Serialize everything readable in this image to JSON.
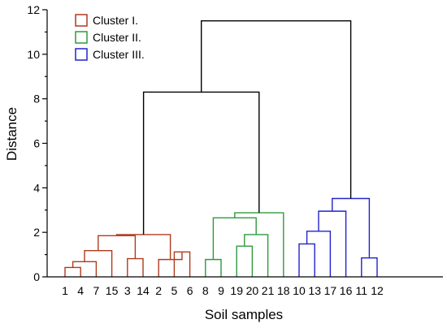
{
  "chart_data": {
    "type": "dendrogram",
    "xlabel": "Soil samples",
    "ylabel": "Distance",
    "ylim": [
      0,
      12
    ],
    "yticks": [
      0,
      2,
      4,
      6,
      8,
      10,
      12
    ],
    "leaves": [
      "1",
      "4",
      "7",
      "15",
      "3",
      "14",
      "2",
      "5",
      "6",
      "8",
      "9",
      "19",
      "20",
      "21",
      "18",
      "10",
      "13",
      "17",
      "16",
      "11",
      "12"
    ],
    "legend": {
      "position": "top-left",
      "entries": [
        {
          "label": "Cluster I.",
          "color": "#b03a1e"
        },
        {
          "label": "Cluster II.",
          "color": "#2e9a3c"
        },
        {
          "label": "Cluster III.",
          "color": "#2222cc"
        }
      ]
    },
    "merges": [
      {
        "id": "m1",
        "children": [
          "1",
          "4"
        ],
        "height": 0.42,
        "color": "#b03a1e"
      },
      {
        "id": "m2",
        "children": [
          "m1",
          "7"
        ],
        "height": 0.68,
        "color": "#b03a1e"
      },
      {
        "id": "m3",
        "children": [
          "m2",
          "15"
        ],
        "height": 1.18,
        "color": "#b03a1e"
      },
      {
        "id": "m4",
        "children": [
          "3",
          "14"
        ],
        "height": 0.82,
        "color": "#b03a1e"
      },
      {
        "id": "m5",
        "children": [
          "5",
          "6"
        ],
        "height": 1.12,
        "color": "#b03a1e"
      },
      {
        "id": "m6",
        "children": [
          "2",
          "m5"
        ],
        "height": 0.78,
        "color": "#b03a1e"
      },
      {
        "id": "m7",
        "children": [
          "m3",
          "m4"
        ],
        "height": 1.85,
        "color": "#b03a1e"
      },
      {
        "id": "m8",
        "children": [
          "m7",
          "m6"
        ],
        "height": 1.9,
        "color": "#b03a1e"
      },
      {
        "id": "m9",
        "children": [
          "8",
          "9"
        ],
        "height": 0.78,
        "color": "#2e9a3c"
      },
      {
        "id": "m10",
        "children": [
          "19",
          "20"
        ],
        "height": 1.38,
        "color": "#2e9a3c"
      },
      {
        "id": "m11",
        "children": [
          "m10",
          "21"
        ],
        "height": 1.9,
        "color": "#2e9a3c"
      },
      {
        "id": "m12",
        "children": [
          "m9",
          "m11"
        ],
        "height": 2.65,
        "color": "#2e9a3c"
      },
      {
        "id": "m13",
        "children": [
          "m12",
          "18"
        ],
        "height": 2.88,
        "color": "#2e9a3c"
      },
      {
        "id": "m14",
        "children": [
          "10",
          "13"
        ],
        "height": 1.48,
        "color": "#2222cc"
      },
      {
        "id": "m15",
        "children": [
          "m14",
          "17"
        ],
        "height": 2.05,
        "color": "#2222cc"
      },
      {
        "id": "m16",
        "children": [
          "m15",
          "16"
        ],
        "height": 2.95,
        "color": "#2222cc"
      },
      {
        "id": "m17",
        "children": [
          "11",
          "12"
        ],
        "height": 0.85,
        "color": "#2222cc"
      },
      {
        "id": "m18",
        "children": [
          "m16",
          "m17"
        ],
        "height": 3.52,
        "color": "#2222cc"
      },
      {
        "id": "m19",
        "children": [
          "m8",
          "m13"
        ],
        "height": 8.3,
        "color": "#000000"
      },
      {
        "id": "m20",
        "children": [
          "m19",
          "m18"
        ],
        "height": 11.5,
        "color": "#000000"
      }
    ]
  }
}
